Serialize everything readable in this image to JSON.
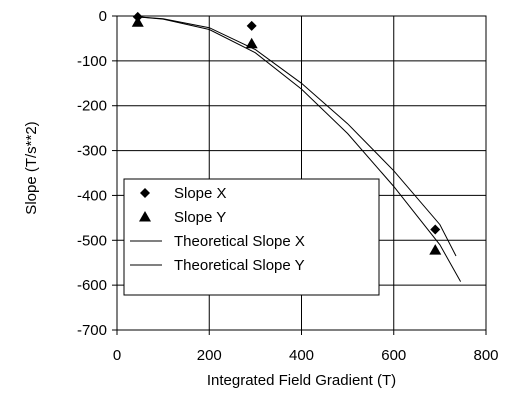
{
  "chart_data": {
    "type": "scatter",
    "title": "",
    "xlabel": "Integrated Field Gradient (T)",
    "ylabel": "Slope (T/s**2)",
    "xlim": [
      0,
      800
    ],
    "ylim": [
      -700,
      0
    ],
    "x_ticks": [
      0,
      200,
      400,
      600,
      800
    ],
    "y_ticks": [
      0,
      -100,
      -200,
      -300,
      -400,
      -500,
      -600,
      -700
    ],
    "x_tick_labels": [
      "0",
      "200",
      "400",
      "600",
      "800"
    ],
    "y_tick_labels": [
      "0",
      "-100",
      "-200",
      "-300",
      "-400",
      "-500",
      "-600",
      "-700"
    ],
    "grid": true,
    "legend_position": "lower-left",
    "series": [
      {
        "name": "Slope X",
        "kind": "points",
        "marker": "diamond",
        "color": "#000000",
        "x": [
          45,
          292,
          690
        ],
        "y": [
          -2,
          -22,
          -476
        ]
      },
      {
        "name": "Slope Y",
        "kind": "points",
        "marker": "triangle",
        "color": "#000000",
        "x": [
          45,
          292,
          690
        ],
        "y": [
          -14,
          -62,
          -522
        ]
      },
      {
        "name": "Theoretical Slope X",
        "kind": "line",
        "color": "#000000",
        "x": [
          45,
          100,
          200,
          300,
          400,
          500,
          600,
          700,
          735
        ],
        "y": [
          -2,
          -6,
          -26,
          -75,
          -150,
          -240,
          -345,
          -465,
          -535
        ]
      },
      {
        "name": "Theoretical Slope Y",
        "kind": "line",
        "color": "#000000",
        "x": [
          45,
          100,
          200,
          300,
          400,
          500,
          600,
          700,
          745
        ],
        "y": [
          -2,
          -7,
          -30,
          -82,
          -163,
          -262,
          -380,
          -510,
          -592
        ]
      }
    ]
  }
}
